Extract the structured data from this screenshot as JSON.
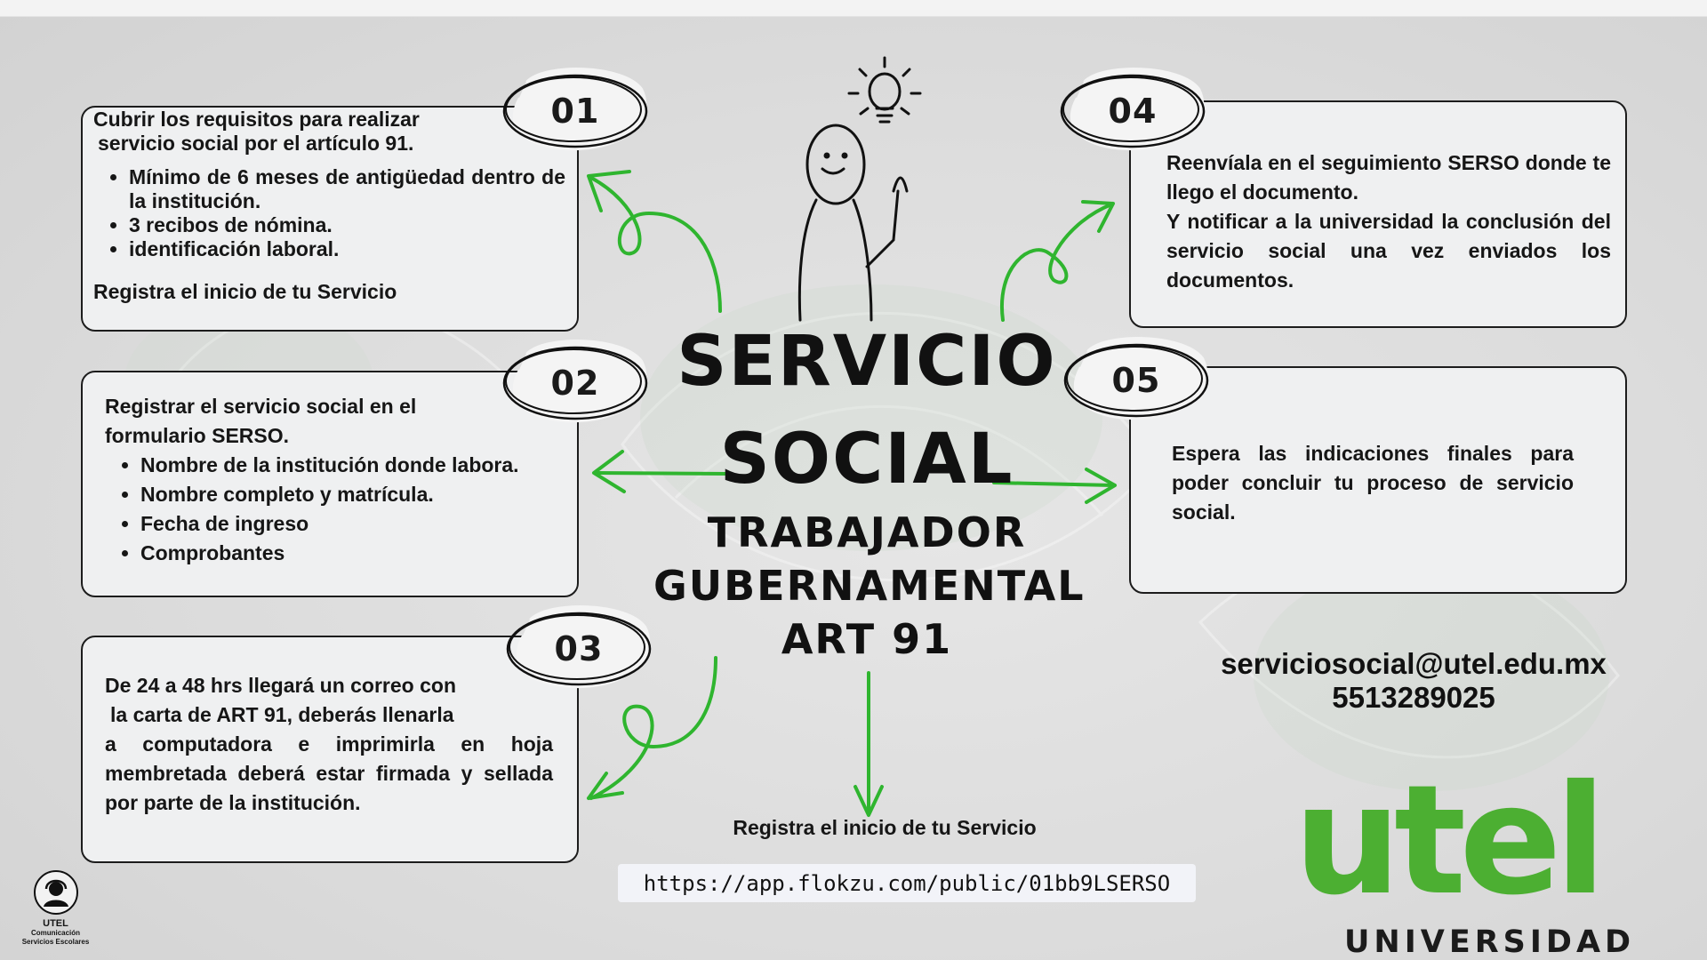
{
  "title": {
    "line1": "SERVICIO",
    "line2": "SOCIAL",
    "line3": "TRABAJADOR",
    "line4": "GUBERNAMENTAL",
    "line5": "ART 91"
  },
  "steps": [
    {
      "number": "01",
      "heading_line1": "Cubrir los requisitos para realizar",
      "heading_line2": "servicio social por el artículo 91.",
      "bullets": [
        "Mínimo de 6 meses de antigüedad dentro de la institución.",
        "3 recibos de nómina.",
        "identificación laboral."
      ],
      "footer": "Registra el inicio de tu Servicio"
    },
    {
      "number": "02",
      "heading": "Registrar el servicio social en el formulario SERSO.",
      "bullets": [
        "Nombre de la institución donde labora.",
        "Nombre completo y matrícula.",
        "Fecha de ingreso",
        "Comprobantes"
      ]
    },
    {
      "number": "03",
      "line1": "De 24 a 48 hrs llegará un correo con",
      "line2": "la carta de ART 91, deberás llenarla",
      "rest": "a computadora e imprimirla en hoja membretada deberá estar firmada y sellada por parte de la institución."
    },
    {
      "number": "04",
      "text1": "Reenvíala en el seguimiento SERSO donde te llego el documento.",
      "text2": "Y notificar a la universidad la conclusión del servicio social una vez enviados los documentos."
    },
    {
      "number": "05",
      "text": "Espera las indicaciones finales para poder concluir tu proceso de servicio social."
    }
  ],
  "contact": {
    "email": "serviciosocial@utel.edu.mx",
    "phone": "5513289025"
  },
  "register": {
    "label": "Registra el inicio de tu Servicio",
    "url": "https://app.flokzu.com/public/01bb9LSERSO"
  },
  "brand": {
    "logo_word": "utel",
    "logo_sub": "UNIVERSIDAD",
    "small_brand": "UTEL",
    "small_caption_line1": "Comunicación",
    "small_caption_line2": "Servicios Escolares"
  },
  "colors": {
    "accent": "#4caf32",
    "arrow": "#2fb52f",
    "card_bg": "#eff0f1",
    "ink": "#161616"
  }
}
